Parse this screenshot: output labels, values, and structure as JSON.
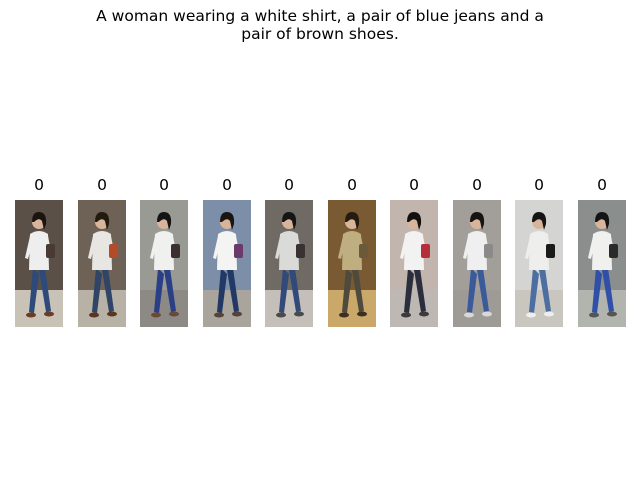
{
  "caption": {
    "line1": "A woman wearing a white shirt, a pair of blue jeans and a",
    "line2": "pair of brown shoes."
  },
  "results": [
    {
      "score": "0",
      "bg": "#5a5048",
      "floor": "#c9c2b6",
      "shirt": "#eeeeee",
      "pants": "#2d4a7a",
      "hair": "#1a1410",
      "bag": "#4a3a33",
      "shoes": "#6b3b22"
    },
    {
      "score": "0",
      "bg": "#6e6257",
      "floor": "#b8b2a6",
      "shirt": "#e8e6e2",
      "pants": "#2f4466",
      "hair": "#22190f",
      "bag": "#b34a2a",
      "shoes": "#5a3522"
    },
    {
      "score": "0",
      "bg": "#9a9a94",
      "floor": "#8d8a85",
      "shirt": "#f0f0ee",
      "pants": "#2a3f86",
      "hair": "#141414",
      "bag": "#3a3030",
      "shoes": "#6a4a35"
    },
    {
      "score": "0",
      "bg": "#7d8ea8",
      "floor": "#a9a49c",
      "shirt": "#f4f4f2",
      "pants": "#223966",
      "hair": "#1b1512",
      "bag": "#6b3a6a",
      "shoes": "#55423a"
    },
    {
      "score": "0",
      "bg": "#6f6a63",
      "floor": "#c4c0b9",
      "shirt": "#dadad8",
      "pants": "#314a7a",
      "hair": "#151515",
      "bag": "#3a3232",
      "shoes": "#4a4a4a"
    },
    {
      "score": "0",
      "bg": "#7a5a32",
      "floor": "#c9a86a",
      "shirt": "#bfae80",
      "pants": "#4e4a3e",
      "hair": "#241a10",
      "bag": "#6a5a3a",
      "shoes": "#3a2f22"
    },
    {
      "score": "0",
      "bg": "#c2b5ad",
      "floor": "#bdb8b3",
      "shirt": "#f2f2f2",
      "pants": "#2b2f3d",
      "hair": "#111111",
      "bag": "#b52f3a",
      "shoes": "#3b3b3b"
    },
    {
      "score": "0",
      "bg": "#a29f9a",
      "floor": "#9e9b96",
      "shirt": "#efefef",
      "pants": "#3b5a9a",
      "hair": "#171311",
      "bag": "#8a8a8a",
      "shoes": "#d8d8d8"
    },
    {
      "score": "0",
      "bg": "#d4d4d2",
      "floor": "#c9c6c0",
      "shirt": "#eeeeec",
      "pants": "#4c6ea0",
      "hair": "#141414",
      "bag": "#1a1a1a",
      "shoes": "#eeeeee"
    },
    {
      "score": "0",
      "bg": "#8a8e8c",
      "floor": "#b2b4ae",
      "shirt": "#f0f0ee",
      "pants": "#2f4fa8",
      "hair": "#141414",
      "bag": "#2a2a2a",
      "shoes": "#555555"
    }
  ]
}
